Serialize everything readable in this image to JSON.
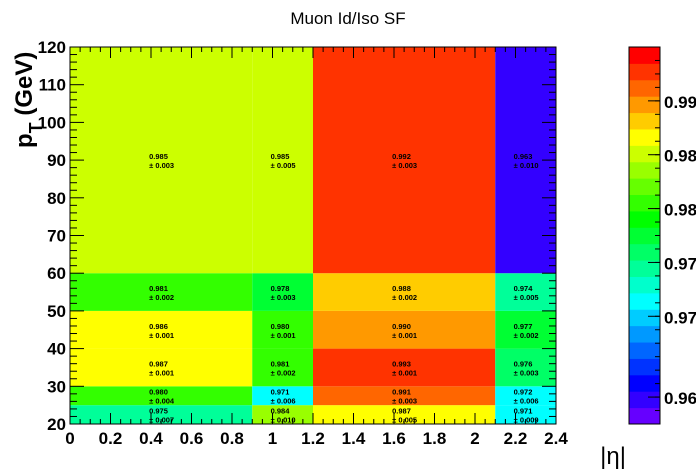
{
  "chart_data": {
    "type": "heatmap",
    "title": "Muon Id/Iso SF",
    "xlabel": "|η|",
    "ylabel_main": "p",
    "ylabel_sub": "T",
    "ylabel_unit": " (GeV)",
    "xlim": [
      0,
      2.4
    ],
    "ylim": [
      20,
      120
    ],
    "zlim": [
      0.96,
      0.995
    ],
    "x_edges": [
      0,
      0.9,
      1.2,
      2.1,
      2.4
    ],
    "y_edges": [
      20,
      25,
      30,
      40,
      50,
      60,
      120
    ],
    "x_ticks": [
      "0",
      "0.2",
      "0.4",
      "0.6",
      "0.8",
      "1",
      "1.2",
      "1.4",
      "1.6",
      "1.8",
      "2",
      "2.2",
      "2.4"
    ],
    "y_ticks": [
      "20",
      "30",
      "40",
      "50",
      "60",
      "70",
      "80",
      "90",
      "100",
      "110",
      "120"
    ],
    "z_tick_labels": [
      "0.96",
      "0.97",
      "0.97",
      "0.98",
      "0.98",
      "0.99"
    ],
    "z_tick_values": [
      0.9625,
      0.97,
      0.975,
      0.98,
      0.985,
      0.99
    ],
    "values": [
      [
        0.975,
        0.984,
        0.987,
        0.971
      ],
      [
        0.98,
        0.971,
        0.991,
        0.972
      ],
      [
        0.987,
        0.981,
        0.993,
        0.976
      ],
      [
        0.986,
        0.98,
        0.99,
        0.977
      ],
      [
        0.981,
        0.978,
        0.988,
        0.974
      ],
      [
        0.985,
        0.985,
        0.992,
        0.963
      ]
    ],
    "errors": [
      [
        0.007,
        0.01,
        0.005,
        0.009
      ],
      [
        0.004,
        0.006,
        0.003,
        0.006
      ],
      [
        0.001,
        0.002,
        0.001,
        0.003
      ],
      [
        0.001,
        0.001,
        0.001,
        0.002
      ],
      [
        0.002,
        0.003,
        0.002,
        0.005
      ],
      [
        0.003,
        0.005,
        0.003,
        0.01
      ]
    ],
    "palette": [
      "#6600ff",
      "#3300ff",
      "#0000ff",
      "#0033ff",
      "#0066ff",
      "#0099ff",
      "#00ccff",
      "#00ffff",
      "#00ffcc",
      "#00ff99",
      "#00ff66",
      "#00ff33",
      "#00ff00",
      "#33ff00",
      "#66ff00",
      "#99ff00",
      "#ccff00",
      "#ffff00",
      "#ffcc00",
      "#ff9900",
      "#ff6600",
      "#ff3300",
      "#ff0000"
    ],
    "palette_levels": [
      0.9608,
      0.9623,
      0.9638,
      0.9653,
      0.9668,
      0.9683,
      0.9698,
      0.9713,
      0.9728,
      0.9743,
      0.9758,
      0.9773,
      0.9788,
      0.9803,
      0.9818,
      0.9833,
      0.9848,
      0.9863,
      0.9878,
      0.9893,
      0.9908,
      0.9923,
      0.9938
    ]
  }
}
